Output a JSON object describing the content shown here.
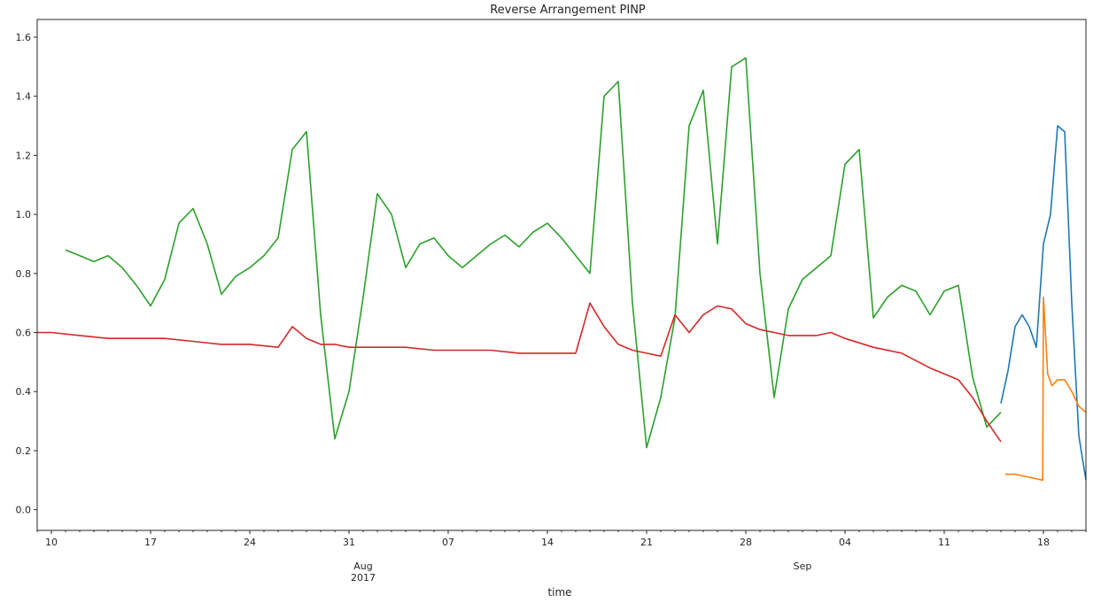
{
  "chart_data": {
    "type": "line",
    "title": "Reverse Arrangement PINP",
    "xlabel": "time",
    "ylabel": "",
    "ylim": [
      -0.07,
      1.66
    ],
    "yticks": [
      0.0,
      0.2,
      0.4,
      0.6,
      0.8,
      1.0,
      1.2,
      1.4,
      1.6
    ],
    "xlim": [
      "2017-07-09",
      "2017-09-21"
    ],
    "xticks_major": [
      {
        "date": "2017-07-10",
        "label": "10"
      },
      {
        "date": "2017-07-17",
        "label": "17"
      },
      {
        "date": "2017-07-24",
        "label": "24"
      },
      {
        "date": "2017-07-31",
        "label": "31"
      },
      {
        "date": "2017-08-07",
        "label": "07"
      },
      {
        "date": "2017-08-14",
        "label": "14"
      },
      {
        "date": "2017-08-21",
        "label": "21"
      },
      {
        "date": "2017-08-28",
        "label": "28"
      },
      {
        "date": "2017-09-04",
        "label": "04"
      },
      {
        "date": "2017-09-11",
        "label": "11"
      },
      {
        "date": "2017-09-18",
        "label": "18"
      }
    ],
    "xticks_month": [
      {
        "date": "2017-08-01",
        "label": "Aug",
        "sublabel": "2017"
      },
      {
        "date": "2017-09-01",
        "label": "Sep",
        "sublabel": ""
      }
    ],
    "grid": false,
    "series": [
      {
        "color": "#2ca02c",
        "x": [
          "2017-07-11",
          "2017-07-12",
          "2017-07-13",
          "2017-07-14",
          "2017-07-15",
          "2017-07-16",
          "2017-07-17",
          "2017-07-18",
          "2017-07-19",
          "2017-07-20",
          "2017-07-21",
          "2017-07-22",
          "2017-07-23",
          "2017-07-24",
          "2017-07-25",
          "2017-07-26",
          "2017-07-27",
          "2017-07-28",
          "2017-07-29",
          "2017-07-30",
          "2017-07-31",
          "2017-08-01",
          "2017-08-02",
          "2017-08-03",
          "2017-08-04",
          "2017-08-05",
          "2017-08-06",
          "2017-08-07",
          "2017-08-08",
          "2017-08-09",
          "2017-08-10",
          "2017-08-11",
          "2017-08-12",
          "2017-08-13",
          "2017-08-14",
          "2017-08-15",
          "2017-08-16",
          "2017-08-17",
          "2017-08-18",
          "2017-08-19",
          "2017-08-20",
          "2017-08-21",
          "2017-08-22",
          "2017-08-23",
          "2017-08-24",
          "2017-08-25",
          "2017-08-26",
          "2017-08-27",
          "2017-08-28",
          "2017-08-29",
          "2017-08-30",
          "2017-08-31",
          "2017-09-01",
          "2017-09-02",
          "2017-09-03",
          "2017-09-04",
          "2017-09-05",
          "2017-09-06",
          "2017-09-07",
          "2017-09-08",
          "2017-09-09",
          "2017-09-10",
          "2017-09-11",
          "2017-09-12",
          "2017-09-13",
          "2017-09-14",
          "2017-09-15"
        ],
        "y": [
          0.88,
          0.86,
          0.84,
          0.86,
          0.82,
          0.76,
          0.69,
          0.78,
          0.97,
          1.02,
          0.9,
          0.73,
          0.79,
          0.82,
          0.86,
          0.92,
          1.22,
          1.28,
          0.66,
          0.24,
          0.4,
          0.72,
          1.07,
          1.0,
          0.82,
          0.9,
          0.92,
          0.86,
          0.82,
          0.86,
          0.9,
          0.93,
          0.89,
          0.94,
          0.97,
          0.92,
          0.86,
          0.8,
          1.4,
          1.45,
          0.7,
          0.21,
          0.38,
          0.65,
          1.3,
          1.42,
          0.9,
          1.5,
          1.53,
          0.8,
          0.38,
          0.68,
          0.78,
          0.82,
          0.86,
          1.17,
          1.22,
          0.65,
          0.72,
          0.76,
          0.74,
          0.66,
          0.74,
          0.76,
          0.45,
          0.28,
          0.33
        ]
      },
      {
        "color": "#d62728",
        "x": [
          "2017-07-09",
          "2017-07-10",
          "2017-07-12",
          "2017-07-14",
          "2017-07-16",
          "2017-07-18",
          "2017-07-20",
          "2017-07-22",
          "2017-07-24",
          "2017-07-26",
          "2017-07-27",
          "2017-07-28",
          "2017-07-29",
          "2017-07-30",
          "2017-07-31",
          "2017-08-02",
          "2017-08-04",
          "2017-08-06",
          "2017-08-08",
          "2017-08-10",
          "2017-08-12",
          "2017-08-14",
          "2017-08-16",
          "2017-08-17",
          "2017-08-18",
          "2017-08-19",
          "2017-08-20",
          "2017-08-21",
          "2017-08-22",
          "2017-08-23",
          "2017-08-24",
          "2017-08-25",
          "2017-08-26",
          "2017-08-27",
          "2017-08-28",
          "2017-08-29",
          "2017-08-30",
          "2017-08-31",
          "2017-09-01",
          "2017-09-02",
          "2017-09-03",
          "2017-09-04",
          "2017-09-06",
          "2017-09-08",
          "2017-09-10",
          "2017-09-12",
          "2017-09-13",
          "2017-09-14",
          "2017-09-15"
        ],
        "y": [
          0.6,
          0.6,
          0.59,
          0.58,
          0.58,
          0.58,
          0.57,
          0.56,
          0.56,
          0.55,
          0.62,
          0.58,
          0.56,
          0.56,
          0.55,
          0.55,
          0.55,
          0.54,
          0.54,
          0.54,
          0.53,
          0.53,
          0.53,
          0.7,
          0.62,
          0.56,
          0.54,
          0.53,
          0.52,
          0.66,
          0.6,
          0.66,
          0.69,
          0.68,
          0.63,
          0.61,
          0.6,
          0.59,
          0.59,
          0.59,
          0.6,
          0.58,
          0.55,
          0.53,
          0.48,
          0.44,
          0.38,
          0.3,
          0.23
        ]
      },
      {
        "color": "#1f77b4",
        "x": [
          "2017-09-15",
          "2017-09-15.5",
          "2017-09-16",
          "2017-09-16.5",
          "2017-09-17",
          "2017-09-17.5",
          "2017-09-18",
          "2017-09-18.5",
          "2017-09-19",
          "2017-09-19.5",
          "2017-09-20",
          "2017-09-20.5",
          "2017-09-21"
        ],
        "y": [
          0.36,
          0.47,
          0.62,
          0.66,
          0.62,
          0.55,
          0.9,
          1.0,
          1.3,
          1.28,
          0.7,
          0.25,
          0.1
        ]
      },
      {
        "color": "#ff7f0e",
        "x": [
          "2017-09-15.3",
          "2017-09-16",
          "2017-09-17",
          "2017-09-17.95",
          "2017-09-18",
          "2017-09-18.3",
          "2017-09-18.6",
          "2017-09-19",
          "2017-09-19.5",
          "2017-09-20",
          "2017-09-20.5",
          "2017-09-21"
        ],
        "y": [
          0.12,
          0.12,
          0.11,
          0.1,
          0.72,
          0.46,
          0.42,
          0.44,
          0.44,
          0.4,
          0.35,
          0.33
        ]
      }
    ]
  }
}
